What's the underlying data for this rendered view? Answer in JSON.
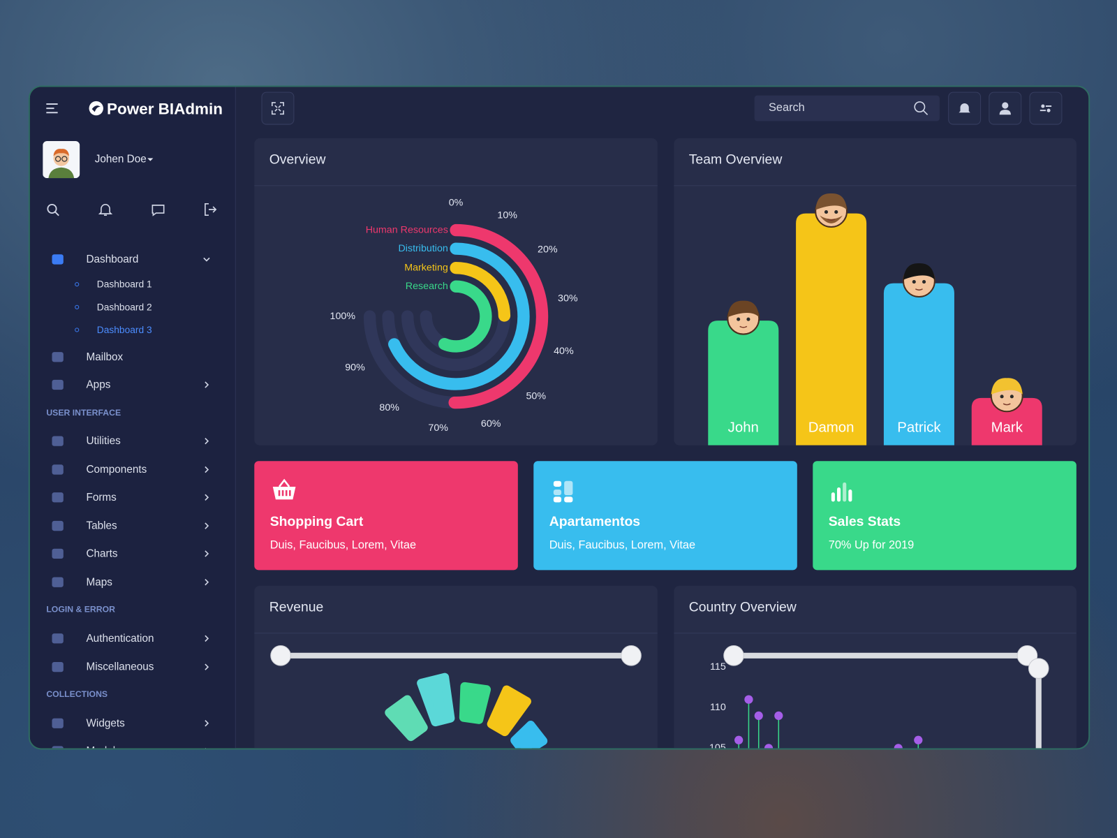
{
  "header": {
    "brand": "Power BIAdmin",
    "search_placeholder": "Search"
  },
  "user": {
    "name": "Johen Doe"
  },
  "sidebar": {
    "menu": [
      {
        "label": "Dashboard",
        "children": [
          "Dashboard 1",
          "Dashboard 2",
          "Dashboard 3"
        ]
      },
      {
        "label": "Mailbox"
      },
      {
        "label": "Apps"
      }
    ],
    "sections": [
      {
        "title": "USER INTERFACE",
        "items": [
          "Utilities",
          "Components",
          "Forms",
          "Tables",
          "Charts",
          "Maps"
        ]
      },
      {
        "title": "LOGIN & ERROR",
        "items": [
          "Authentication",
          "Miscellaneous"
        ]
      },
      {
        "title": "COLLECTIONS",
        "items": [
          "Widgets",
          "Modals"
        ]
      }
    ]
  },
  "cards": [
    {
      "title": "Shopping Cart",
      "text": "Duis, Faucibus, Lorem, Vitae",
      "color": "#ee386d"
    },
    {
      "title": "Apartamentos",
      "text": "Duis, Faucibus, Lorem, Vitae",
      "color": "#38bdee"
    },
    {
      "title": "Sales Stats",
      "text": "70% Up for 2019",
      "color": "#39d98a"
    }
  ],
  "chart_data": [
    {
      "type": "radialBar",
      "title": "Overview",
      "categories": [
        "Human Resources",
        "Distribution",
        "Marketing",
        "Research"
      ],
      "values": [
        67,
        91,
        33,
        75
      ],
      "colors": [
        "#ee386d",
        "#38bdee",
        "#f5c518",
        "#39d98a"
      ],
      "ylim": [
        0,
        100
      ],
      "yticks": [
        {
          "value": 0,
          "label": "0%"
        },
        {
          "value": 10,
          "label": "10%"
        },
        {
          "value": 20,
          "label": "20%"
        },
        {
          "value": 30,
          "label": "30%"
        },
        {
          "value": 40,
          "label": "40%"
        },
        {
          "value": 50,
          "label": "50%"
        },
        {
          "value": 60,
          "label": "60%"
        },
        {
          "value": 70,
          "label": "70%"
        },
        {
          "value": 80,
          "label": "80%"
        },
        {
          "value": 90,
          "label": "90%"
        },
        {
          "value": 100,
          "label": "100%"
        }
      ]
    },
    {
      "type": "bar",
      "title": "Team Overview",
      "categories": [
        "John",
        "Damon",
        "Patrick",
        "Mark"
      ],
      "values": [
        50,
        93,
        65,
        19
      ],
      "colors": [
        "#39d98a",
        "#f5c518",
        "#38bdee",
        "#ee386d"
      ],
      "ylim": [
        0,
        100
      ]
    },
    {
      "type": "polarBar",
      "title": "Revenue",
      "categories": [
        null,
        null,
        null,
        null,
        null
      ],
      "values": [
        87,
        94,
        86,
        91,
        79
      ],
      "colors": [
        "#5fdcb4",
        "#5bd8d8",
        "#39d98a",
        "#f5c518",
        "#38bdee"
      ],
      "ylim": [
        0,
        100
      ]
    },
    {
      "type": "lollipop",
      "title": "Country Overview",
      "x": [
        1,
        2,
        3,
        4,
        5,
        17,
        19
      ],
      "values": [
        106,
        111,
        109,
        105,
        109,
        105,
        106
      ],
      "color": "#a55ee8",
      "stem_color": "#39d98a",
      "xlim": [
        0,
        25
      ],
      "ylim": [
        100,
        115
      ],
      "yticks": [
        105,
        110,
        115
      ]
    }
  ]
}
